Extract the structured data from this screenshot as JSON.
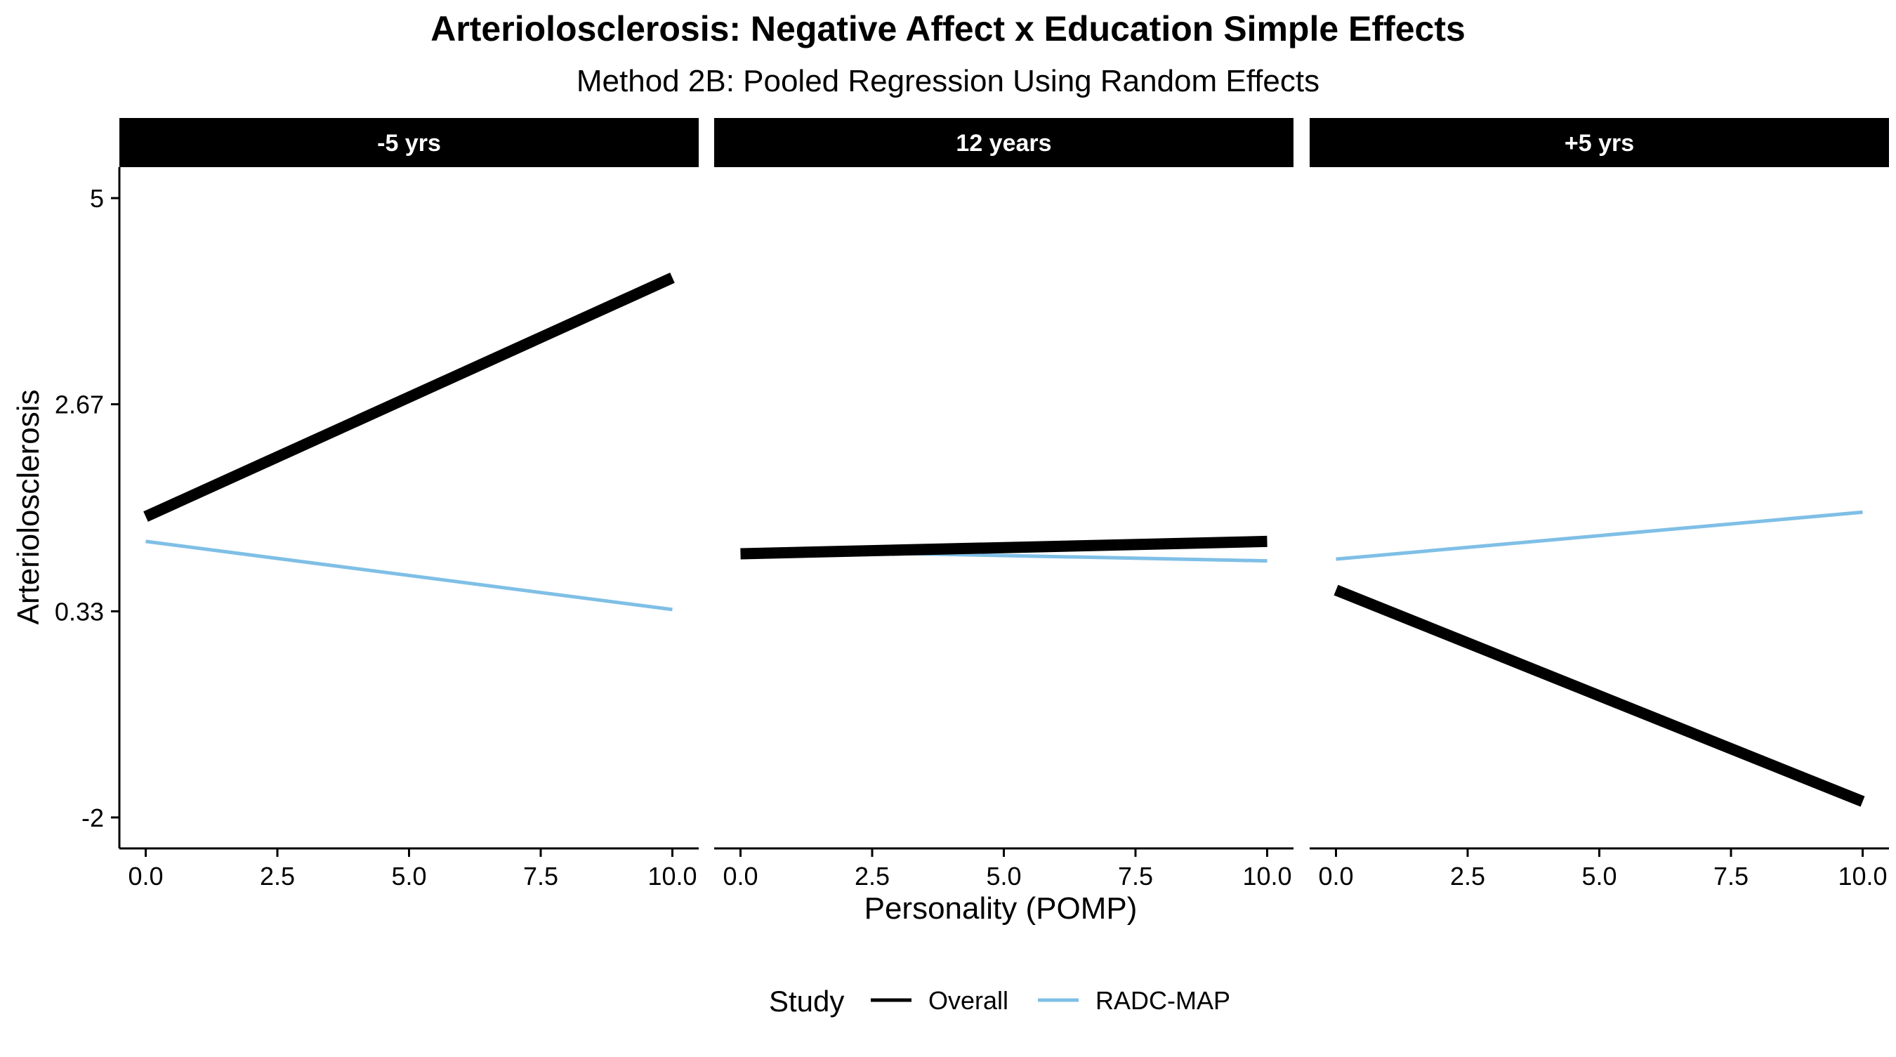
{
  "chart_data": {
    "type": "line",
    "title": "Arteriolosclerosis: Negative Affect x Education Simple Effects",
    "subtitle": "Method 2B: Pooled Regression Using Random Effects",
    "xlabel": "Personality (POMP)",
    "ylabel": "Arteriolosclerosis",
    "xlim": [
      -0.5,
      10.5
    ],
    "ylim": [
      -2.35,
      5.35
    ],
    "x_ticks": [
      0.0,
      2.5,
      5.0,
      7.5,
      10.0
    ],
    "x_tick_labels": [
      "0.0",
      "2.5",
      "5.0",
      "7.5",
      "10.0"
    ],
    "y_ticks": [
      -2,
      0.33,
      2.67,
      5
    ],
    "y_tick_labels": [
      "-2",
      "0.33",
      "2.67",
      "5"
    ],
    "legend": {
      "title": "Study",
      "placement": "bottom",
      "entries": [
        {
          "name": "Overall",
          "color": "#000000"
        },
        {
          "name": "RADC-MAP",
          "color": "#7fbfe6"
        }
      ]
    },
    "grid": false,
    "panels": [
      {
        "label": "-5 yrs",
        "series": [
          {
            "name": "Overall",
            "color": "#000000",
            "x": [
              0,
              10
            ],
            "y": [
              1.4,
              4.1
            ]
          },
          {
            "name": "RADC-MAP",
            "color": "#7fbfe6",
            "x": [
              0,
              10
            ],
            "y": [
              1.12,
              0.35
            ]
          }
        ]
      },
      {
        "label": "12 years",
        "series": [
          {
            "name": "Overall",
            "color": "#000000",
            "x": [
              0,
              10
            ],
            "y": [
              0.98,
              1.12
            ]
          },
          {
            "name": "RADC-MAP",
            "color": "#7fbfe6",
            "x": [
              0,
              10
            ],
            "y": [
              1.02,
              0.9
            ]
          }
        ]
      },
      {
        "label": "+5 yrs",
        "series": [
          {
            "name": "Overall",
            "color": "#000000",
            "x": [
              0,
              10
            ],
            "y": [
              0.57,
              -1.82
            ]
          },
          {
            "name": "RADC-MAP",
            "color": "#7fbfe6",
            "x": [
              0,
              10
            ],
            "y": [
              0.92,
              1.45
            ]
          }
        ]
      }
    ]
  }
}
